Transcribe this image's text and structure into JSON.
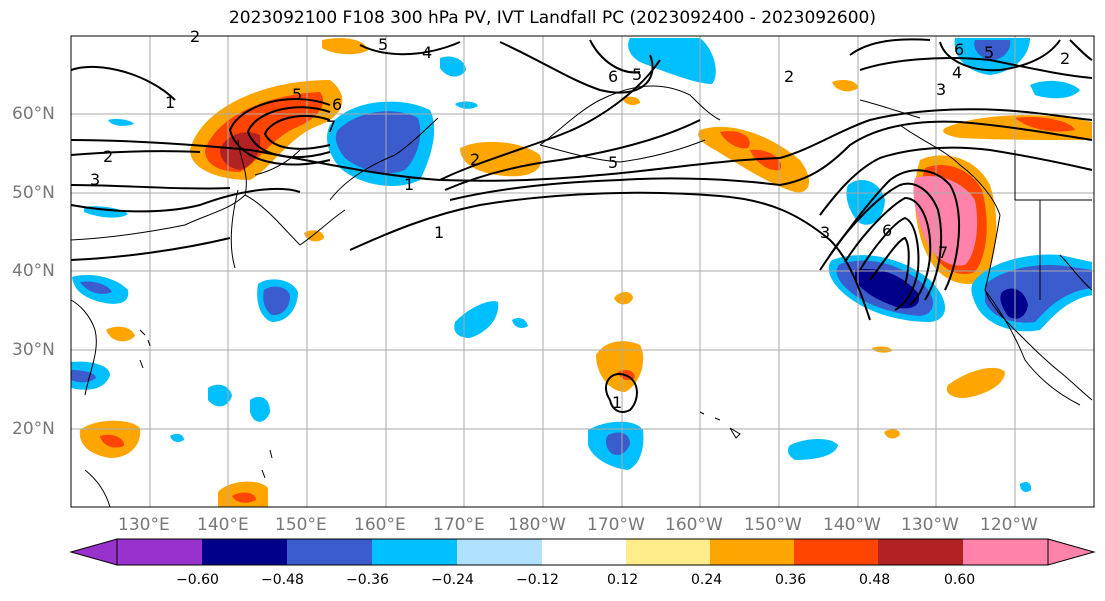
{
  "title": "2023092100 F108 300 hPa PV, IVT Landfall PC (2023092400 - 2023092600)",
  "map": {
    "lat_labels": [
      "60°N",
      "50°N",
      "40°N",
      "30°N",
      "20°N"
    ],
    "lon_labels": [
      "130°E",
      "140°E",
      "150°E",
      "160°E",
      "170°E",
      "180°W",
      "170°W",
      "160°W",
      "150°W",
      "140°W",
      "130°W",
      "120°W"
    ],
    "contour_labels": [
      "1",
      "2",
      "3",
      "4",
      "5",
      "6",
      "7"
    ]
  },
  "colorbar": {
    "ticks": [
      "−0.60",
      "−0.48",
      "−0.36",
      "−0.24",
      "−0.12",
      "0.12",
      "0.24",
      "0.36",
      "0.48",
      "0.60"
    ],
    "colors": [
      "#9932cc",
      "#00008b",
      "#3a5ccc",
      "#00bfff",
      "#b0e2ff",
      "#ffffff",
      "#ffec8b",
      "#ffa500",
      "#ff4500",
      "#b22222",
      "#ff82ab"
    ]
  }
}
